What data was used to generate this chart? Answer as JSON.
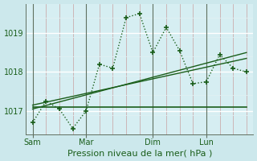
{
  "xlabel": "Pression niveau de la mer( hPa )",
  "bg_color": "#cce8ec",
  "plot_bg": "#d6eef2",
  "grid_color": "#b0d8dc",
  "white_grid": "#e0f0f3",
  "line_color": "#1a5e1a",
  "yticks": [
    1017,
    1018,
    1019
  ],
  "ylim": [
    1016.4,
    1019.75
  ],
  "xtick_labels": [
    "Sam",
    "Mar",
    "Dim",
    "Lun"
  ],
  "xtick_positions": [
    0,
    4,
    9,
    13
  ],
  "xlim": [
    -0.5,
    16.5
  ],
  "main_x": [
    0,
    1,
    2,
    3,
    4,
    5,
    6,
    7,
    8,
    9,
    10,
    11,
    12,
    13,
    14,
    15,
    16
  ],
  "main_y": [
    1016.7,
    1017.25,
    1017.05,
    1016.55,
    1017.0,
    1018.2,
    1018.1,
    1019.4,
    1019.5,
    1018.5,
    1019.15,
    1018.55,
    1017.7,
    1017.75,
    1018.45,
    1018.1,
    1018.0
  ],
  "flat_line_x": [
    0,
    16
  ],
  "flat_line_y": [
    1017.1,
    1017.1
  ],
  "trend2_x": [
    0,
    16
  ],
  "trend2_y": [
    1017.15,
    1018.35
  ],
  "trend3_x": [
    0,
    16
  ],
  "trend3_y": [
    1017.05,
    1018.5
  ],
  "vline_positions": [
    0,
    4,
    9,
    13
  ],
  "vline_color": "#607060",
  "xlabel_fontsize": 8,
  "tick_fontsize": 7,
  "marker_size": 3
}
